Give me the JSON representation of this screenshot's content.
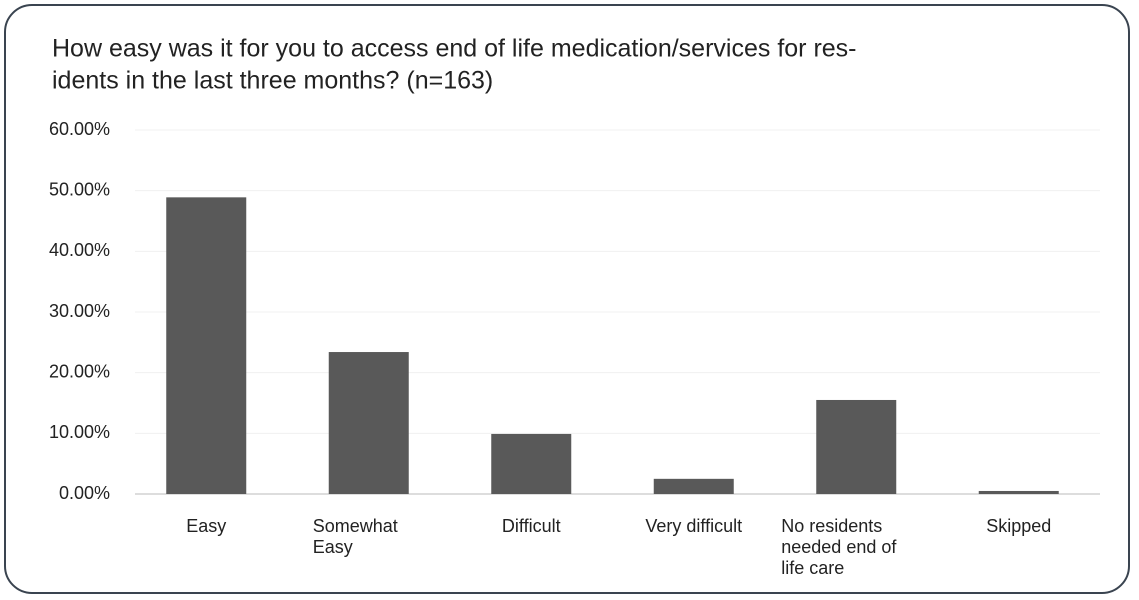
{
  "chart_data": {
    "type": "bar",
    "title": [
      "How easy was it for you to access end of life medication/services for res-",
      "idents in the last three months? (n=163)"
    ],
    "categories": [
      "Easy",
      "Somewhat Easy",
      "Difficult",
      "Very difficult",
      "No residents needed end of life care",
      "Skipped"
    ],
    "values": [
      48.9,
      23.4,
      9.9,
      2.5,
      15.5,
      0.5
    ],
    "color": "#595959",
    "ylim": [
      0,
      60
    ],
    "yticks": [
      {
        "value": 0,
        "label": "0.00%"
      },
      {
        "value": 10,
        "label": "10.00%"
      },
      {
        "value": 20,
        "label": "20.00%"
      },
      {
        "value": 30,
        "label": "30.00%"
      },
      {
        "value": 40,
        "label": "40.00%"
      },
      {
        "value": 50,
        "label": "50.00%"
      },
      {
        "value": 60,
        "label": "60.00%"
      }
    ],
    "grid": true
  }
}
